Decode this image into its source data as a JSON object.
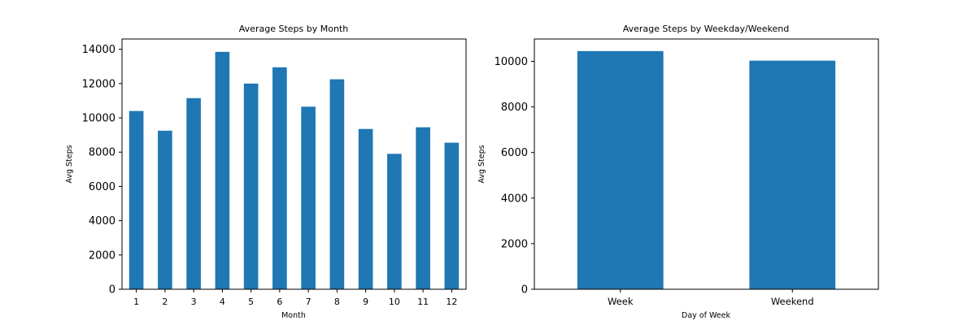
{
  "chart_data": [
    {
      "type": "bar",
      "title": "Average Steps by Month",
      "xlabel": "Month",
      "ylabel": "Avg Steps",
      "categories": [
        "1",
        "2",
        "3",
        "4",
        "5",
        "6",
        "7",
        "8",
        "9",
        "10",
        "11",
        "12"
      ],
      "values": [
        10400,
        9250,
        11150,
        13850,
        12000,
        12950,
        10650,
        12250,
        9350,
        7900,
        9450,
        8550
      ],
      "ylim": [
        0,
        14600
      ],
      "yticks": [
        0,
        2000,
        4000,
        6000,
        8000,
        10000,
        12000,
        14000
      ],
      "grid": false,
      "color": "#1f77b4"
    },
    {
      "type": "bar",
      "title": "Average Steps by Weekday/Weekend",
      "xlabel": "Day of Week",
      "ylabel": "Avg Steps",
      "categories": [
        "Week",
        "Weekend"
      ],
      "values": [
        10450,
        10030
      ],
      "ylim": [
        0,
        10980
      ],
      "yticks": [
        0,
        2000,
        4000,
        6000,
        8000,
        10000
      ],
      "grid": false,
      "color": "#1f77b4"
    }
  ]
}
